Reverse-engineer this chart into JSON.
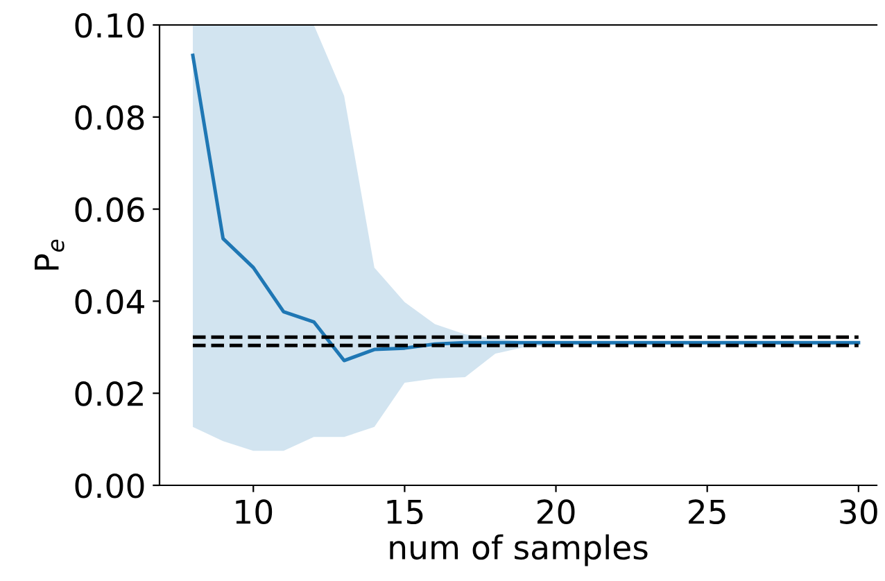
{
  "chart_data": {
    "type": "line",
    "xlabel": "num of samples",
    "ylabel": "P$_{e}$",
    "x": [
      8,
      9,
      10,
      11,
      12,
      13,
      14,
      15,
      16,
      17,
      18,
      19,
      20,
      21,
      22,
      23,
      24,
      25,
      26,
      27,
      28,
      29,
      30
    ],
    "series": [
      {
        "color": "#1f77b4",
        "values": [
          0.0934,
          0.0536,
          0.0473,
          0.0377,
          0.0355,
          0.0271,
          0.0295,
          0.0298,
          0.0307,
          0.031,
          0.031,
          0.031,
          0.031,
          0.031,
          0.031,
          0.031,
          0.031,
          0.031,
          0.031,
          0.031,
          0.031,
          0.031,
          0.031
        ],
        "lower": [
          0.0127,
          0.0096,
          0.0075,
          0.0075,
          0.0105,
          0.0105,
          0.0127,
          0.0223,
          0.0232,
          0.0235,
          0.0286,
          0.0301,
          0.0305,
          0.0305,
          0.0305,
          0.0305,
          0.0305,
          0.0305,
          0.0305,
          0.0305,
          0.0305,
          0.0305,
          0.0305
        ],
        "upper": [
          0.1,
          0.1,
          0.1,
          0.1,
          0.1,
          0.0846,
          0.0473,
          0.0398,
          0.035,
          0.0328,
          0.0319,
          0.0312,
          0.0312,
          0.0312,
          0.0312,
          0.0312,
          0.0312,
          0.0312,
          0.0312,
          0.0312,
          0.0312,
          0.0312,
          0.0312
        ]
      }
    ],
    "ref_lines": [
      {
        "axis": "y",
        "value": 0.0322,
        "color": "#000000",
        "line_style": "dashed"
      },
      {
        "axis": "y",
        "value": 0.0304,
        "color": "#000000",
        "line_style": "dashed"
      }
    ],
    "xlim": [
      6.9,
      30.6
    ],
    "ylim": [
      0,
      0.1
    ],
    "xticks": [
      10,
      15,
      20,
      25,
      30
    ],
    "yticks": [
      {
        "value": 0,
        "label": "0.00"
      },
      {
        "value": 0.02,
        "label": "0.02"
      },
      {
        "value": 0.04,
        "label": "0.04"
      },
      {
        "value": 0.06,
        "label": "0.06"
      },
      {
        "value": 0.08,
        "label": "0.08"
      },
      {
        "value": 0.1,
        "label": "0.10"
      }
    ],
    "grid": false,
    "legend": false
  }
}
